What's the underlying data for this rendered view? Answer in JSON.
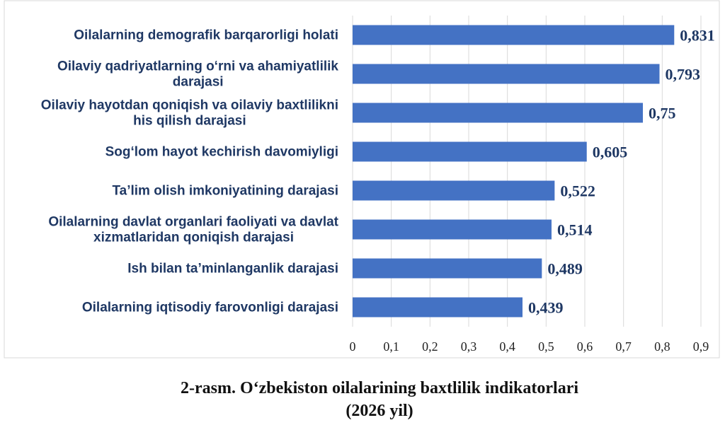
{
  "chart_data": {
    "type": "bar",
    "orientation": "horizontal",
    "categories": [
      [
        "Oilalarning demografik barqarorligi holati"
      ],
      [
        "Oilaviy qadriyatlarning o‘rni va ahamiyatlilik",
        "darajasi"
      ],
      [
        "Oilaviy hayotdan qoniqish va oilaviy baxtlilikni",
        "his qilish darajasi"
      ],
      [
        "Sog‘lom hayot kechirish davomiyligi"
      ],
      [
        "Ta’lim olish imkoniyatining darajasi"
      ],
      [
        "Oilalarning davlat organlari faoliyati va davlat",
        "xizmatlaridan qoniqish darajasi"
      ],
      [
        "Ish bilan ta’minlanganlik darajasi"
      ],
      [
        "Oilalarning iqtisodiy farovonligi darajasi"
      ]
    ],
    "values": [
      0.831,
      0.793,
      0.75,
      0.605,
      0.522,
      0.514,
      0.489,
      0.439
    ],
    "value_labels": [
      "0,831",
      "0,793",
      "0,75",
      "0,605",
      "0,522",
      "0,514",
      "0,489",
      "0,439"
    ],
    "xlim": [
      0,
      0.9
    ],
    "ticks": [
      0,
      0.1,
      0.2,
      0.3,
      0.4,
      0.5,
      0.6,
      0.7,
      0.8,
      0.9
    ],
    "tick_labels": [
      "0",
      "0,1",
      "0,2",
      "0,3",
      "0,4",
      "0,5",
      "0,6",
      "0,7",
      "0,8",
      "0,9"
    ],
    "grid": "vertical",
    "bar_color": "#4472c4",
    "label_color": "#1f3864"
  },
  "caption": {
    "line1": "2-rasm. O‘zbekiston oilalarining baxtlilik indikatorlari",
    "line2": "(2026 yil)"
  }
}
